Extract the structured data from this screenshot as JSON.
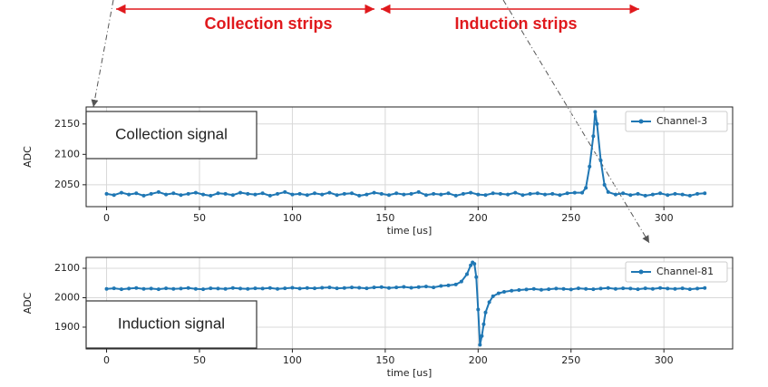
{
  "header": {
    "labels": [
      "Collection strips",
      "Induction strips"
    ]
  },
  "chart_data": [
    {
      "type": "line",
      "annotation": "Collection signal",
      "xlabel": "time [us]",
      "ylabel": "ADC",
      "xlim": [
        -11,
        337
      ],
      "xticks": [
        0,
        50,
        100,
        150,
        200,
        250,
        300
      ],
      "ylim": [
        2014,
        2178
      ],
      "yticks": [
        2050,
        2100,
        2150
      ],
      "grid": true,
      "legend": "upper right",
      "x": [
        0,
        4,
        8,
        12,
        16,
        20,
        24,
        28,
        32,
        36,
        40,
        44,
        48,
        52,
        56,
        60,
        64,
        68,
        72,
        76,
        80,
        84,
        88,
        92,
        96,
        100,
        104,
        108,
        112,
        116,
        120,
        124,
        128,
        132,
        136,
        140,
        144,
        148,
        152,
        156,
        160,
        164,
        168,
        172,
        176,
        180,
        184,
        188,
        192,
        196,
        200,
        204,
        208,
        212,
        216,
        220,
        224,
        228,
        232,
        236,
        240,
        244,
        248,
        252,
        256,
        258,
        260,
        262,
        263,
        264,
        266,
        268,
        270,
        274,
        278,
        282,
        286,
        290,
        294,
        298,
        302,
        306,
        310,
        314,
        318,
        322
      ],
      "series": [
        {
          "name": "Channel-3",
          "color": "#1f77b4",
          "values": [
            2035,
            2033,
            2037,
            2034,
            2036,
            2032,
            2035,
            2038,
            2034,
            2036,
            2033,
            2035,
            2037,
            2034,
            2032,
            2036,
            2035,
            2033,
            2037,
            2035,
            2034,
            2036,
            2032,
            2035,
            2038,
            2034,
            2035,
            2033,
            2036,
            2034,
            2037,
            2033,
            2035,
            2036,
            2032,
            2034,
            2037,
            2035,
            2033,
            2036,
            2034,
            2035,
            2038,
            2033,
            2035,
            2034,
            2036,
            2032,
            2035,
            2037,
            2034,
            2033,
            2036,
            2035,
            2034,
            2037,
            2033,
            2035,
            2036,
            2034,
            2035,
            2033,
            2036,
            2037,
            2037,
            2045,
            2080,
            2130,
            2170,
            2150,
            2090,
            2050,
            2038,
            2034,
            2036,
            2033,
            2035,
            2032,
            2034,
            2036,
            2033,
            2035,
            2034,
            2032,
            2035,
            2036
          ]
        }
      ]
    },
    {
      "type": "line",
      "annotation": "Induction signal",
      "xlabel": "time [us]",
      "ylabel": "ADC",
      "xlim": [
        -11,
        337
      ],
      "xticks": [
        0,
        50,
        100,
        150,
        200,
        250,
        300
      ],
      "ylim": [
        1826,
        2137
      ],
      "yticks": [
        1900,
        2000,
        2100
      ],
      "grid": true,
      "legend": "upper right",
      "x": [
        0,
        4,
        8,
        12,
        16,
        20,
        24,
        28,
        32,
        36,
        40,
        44,
        48,
        52,
        56,
        60,
        64,
        68,
        72,
        76,
        80,
        84,
        88,
        92,
        96,
        100,
        104,
        108,
        112,
        116,
        120,
        124,
        128,
        132,
        136,
        140,
        144,
        148,
        152,
        156,
        160,
        164,
        168,
        172,
        176,
        180,
        184,
        188,
        191,
        194,
        196,
        197,
        198,
        199,
        200,
        201,
        202,
        203,
        204,
        206,
        208,
        211,
        214,
        218,
        222,
        226,
        230,
        234,
        238,
        242,
        246,
        250,
        254,
        258,
        262,
        266,
        270,
        274,
        278,
        282,
        286,
        290,
        294,
        298,
        302,
        306,
        310,
        314,
        318,
        322
      ],
      "series": [
        {
          "name": "Channel-81",
          "color": "#1f77b4",
          "values": [
            2030,
            2032,
            2029,
            2031,
            2033,
            2030,
            2031,
            2029,
            2032,
            2030,
            2031,
            2033,
            2030,
            2029,
            2032,
            2031,
            2030,
            2033,
            2031,
            2030,
            2032,
            2031,
            2033,
            2030,
            2032,
            2034,
            2031,
            2033,
            2032,
            2034,
            2035,
            2032,
            2033,
            2035,
            2034,
            2032,
            2035,
            2036,
            2033,
            2035,
            2037,
            2034,
            2036,
            2038,
            2035,
            2040,
            2042,
            2045,
            2055,
            2080,
            2110,
            2120,
            2115,
            2070,
            1960,
            1840,
            1870,
            1910,
            1950,
            1985,
            2005,
            2015,
            2020,
            2024,
            2026,
            2028,
            2030,
            2027,
            2029,
            2031,
            2030,
            2028,
            2032,
            2030,
            2029,
            2031,
            2033,
            2030,
            2032,
            2031,
            2029,
            2032,
            2030,
            2033,
            2031,
            2030,
            2032,
            2029,
            2031,
            2033
          ]
        }
      ]
    }
  ]
}
